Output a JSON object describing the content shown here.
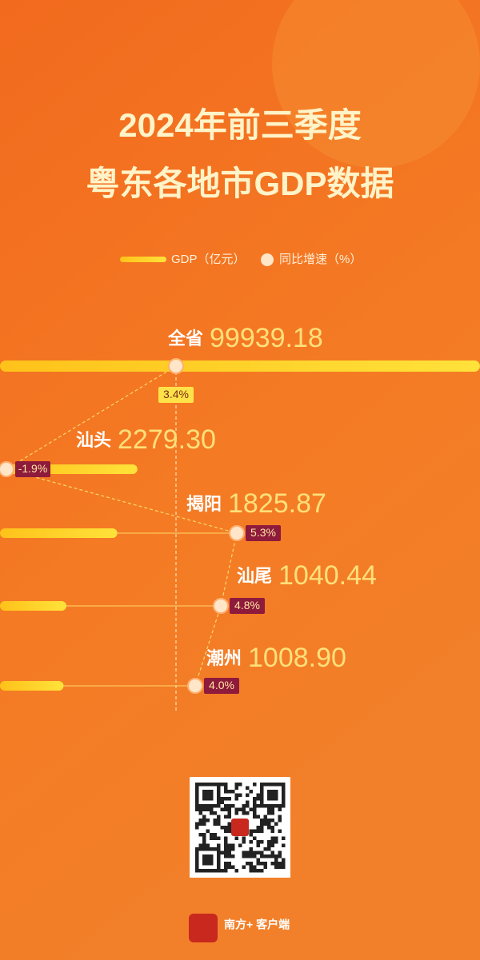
{
  "chart_data": {
    "type": "bar",
    "title_lines": [
      "2024年前三季度",
      "粤东各地市GDP数据"
    ],
    "categories": [
      "全省",
      "汕头",
      "揭阳",
      "汕尾",
      "潮州"
    ],
    "series": [
      {
        "name": "GDP（亿元）",
        "color": "#ffd21a",
        "values": [
          99939.18,
          2279.3,
          1825.87,
          1040.44,
          1008.9
        ],
        "value_labels": [
          "99939.18",
          "2279.30",
          "1825.87",
          "1040.44",
          "1008.90"
        ]
      },
      {
        "name": "同比增速（%）",
        "color": "#ffe6c8",
        "values": [
          3.4,
          -1.9,
          5.3,
          4.8,
          4.0
        ],
        "value_labels": [
          "3.4%",
          "-1.9%",
          "5.3%",
          "4.8%",
          "4.0%"
        ],
        "axis": "x2"
      }
    ],
    "xscale": "log",
    "xlim": [
      500,
      100000
    ],
    "x2lim": [
      -2.1,
      12.9
    ]
  },
  "footer": {
    "brand": "南方+ 客户端"
  }
}
